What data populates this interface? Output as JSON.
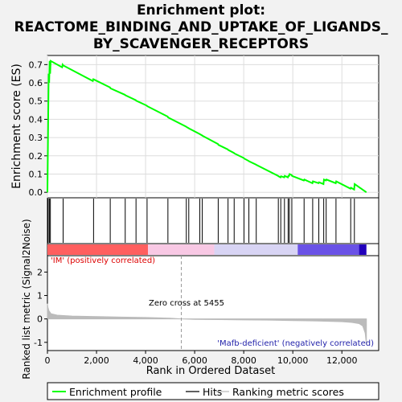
{
  "title_lines": [
    "Enrichment plot:",
    "REACTOME_BINDING_AND_UPTAKE_OF_LIGANDS_",
    "BY_SCAVENGER_RECEPTORS"
  ],
  "legend": {
    "items": [
      "Enrichment profile",
      "Hits",
      "Ranking metric scores"
    ],
    "colors": {
      "profile": "#00ff00",
      "hits": "#000000",
      "metric": "#bbbbbb"
    }
  },
  "chart_data": [
    {
      "type": "line",
      "role": "enrichment-score",
      "ylabel": "Enrichment score (ES)",
      "ylim": [
        -0.03,
        0.75
      ],
      "yticks": [
        0.0,
        0.1,
        0.2,
        0.3,
        0.4,
        0.5,
        0.6,
        0.7
      ],
      "ytick_labels": [
        "0.0",
        "0.1",
        "0.2",
        "0.3",
        "0.4",
        "0.5",
        "0.6",
        "0.7"
      ],
      "xlim": [
        0,
        13500
      ],
      "grid": true,
      "series": [
        {
          "color": "#00ff00",
          "x": [
            0,
            15,
            30,
            50,
            70,
            90,
            110,
            130,
            600,
            620,
            650,
            1850,
            1870,
            1900,
            2550,
            2570,
            3150,
            3180,
            3600,
            3620,
            4050,
            4070,
            4900,
            4920,
            5650,
            5670,
            5750,
            5770,
            6200,
            6220,
            6300,
            6320,
            6950,
            6970,
            7350,
            7370,
            7600,
            7620,
            8000,
            8020,
            8200,
            8220,
            8500,
            8520,
            9400,
            9420,
            9500,
            9520,
            9650,
            9670,
            9800,
            9820,
            9850,
            9870,
            9950,
            9970,
            10450,
            10470,
            10800,
            10820,
            11050,
            11070,
            11250,
            11270,
            11350,
            11370,
            11750,
            11770,
            12350,
            12370,
            12500,
            12520,
            13000
          ],
          "y": [
            0.0,
            0.2,
            0.4,
            0.65,
            0.6,
            0.72,
            0.65,
            0.72,
            0.685,
            0.7,
            0.695,
            0.61,
            0.62,
            0.618,
            0.575,
            0.57,
            0.535,
            0.532,
            0.505,
            0.502,
            0.475,
            0.472,
            0.415,
            0.41,
            0.36,
            0.358,
            0.352,
            0.35,
            0.32,
            0.318,
            0.312,
            0.31,
            0.265,
            0.26,
            0.235,
            0.232,
            0.216,
            0.213,
            0.188,
            0.185,
            0.172,
            0.17,
            0.152,
            0.15,
            0.09,
            0.088,
            0.082,
            0.088,
            0.082,
            0.09,
            0.082,
            0.09,
            0.09,
            0.1,
            0.095,
            0.09,
            0.065,
            0.07,
            0.05,
            0.06,
            0.05,
            0.055,
            0.045,
            0.07,
            0.065,
            0.07,
            0.05,
            0.06,
            0.02,
            0.025,
            0.015,
            0.045,
            0.0
          ]
        }
      ]
    },
    {
      "type": "scatter",
      "role": "hits",
      "x": [
        30,
        80,
        120,
        640,
        1880,
        2560,
        3170,
        3610,
        4060,
        4910,
        5660,
        5760,
        6210,
        6310,
        6960,
        7360,
        7610,
        8010,
        8210,
        8510,
        9410,
        9510,
        9660,
        9810,
        9860,
        9960,
        10460,
        10810,
        11060,
        11260,
        11360,
        11760,
        12360,
        12510
      ]
    },
    {
      "type": "heatmap",
      "role": "rank-color-bar",
      "xlim": [
        0,
        13000
      ],
      "bands": [
        {
          "from": 0,
          "to": 4100,
          "color": "#ff5f5f"
        },
        {
          "from": 4100,
          "to": 6800,
          "color": "#f8c8e4"
        },
        {
          "from": 6800,
          "to": 10200,
          "color": "#d8d4f4"
        },
        {
          "from": 10200,
          "to": 12700,
          "color": "#6a52e6"
        },
        {
          "from": 12700,
          "to": 13000,
          "color": "#2200bb"
        }
      ]
    },
    {
      "type": "area",
      "role": "ranked-list-metric",
      "ylabel": "Ranked list metric (Signal2Noise)",
      "xlabel": "Rank in Ordered Dataset",
      "ylim": [
        -1.35,
        2.7
      ],
      "yticks": [
        -1,
        0,
        1,
        2
      ],
      "ytick_labels": [
        "-1",
        "0",
        "1",
        "2"
      ],
      "xlim": [
        0,
        13500
      ],
      "xticks": [
        0,
        2000,
        4000,
        6000,
        8000,
        10000,
        12000
      ],
      "xtick_labels": [
        "0",
        "2,000",
        "4,000",
        "6,000",
        "8,000",
        "10,000",
        "12,000"
      ],
      "color": "#bbbbbb",
      "x": [
        0,
        20,
        60,
        150,
        400,
        1000,
        2000,
        3000,
        4000,
        5000,
        5455,
        6000,
        7000,
        8000,
        9000,
        10000,
        11000,
        12000,
        12400,
        12700,
        12850,
        12950,
        13000
      ],
      "y": [
        0.65,
        0.5,
        0.35,
        0.22,
        0.16,
        0.12,
        0.1,
        0.08,
        0.06,
        0.03,
        0.0,
        -0.02,
        -0.03,
        -0.04,
        -0.05,
        -0.07,
        -0.09,
        -0.12,
        -0.15,
        -0.2,
        -0.3,
        -0.6,
        -1.1
      ],
      "zero_cross_rank": 5455,
      "annotations": {
        "zero_cross": "Zero cross at 5455",
        "positive": "'IM' (positively correlated)",
        "negative": "'Mafb-deficient' (negatively correlated)"
      }
    }
  ]
}
